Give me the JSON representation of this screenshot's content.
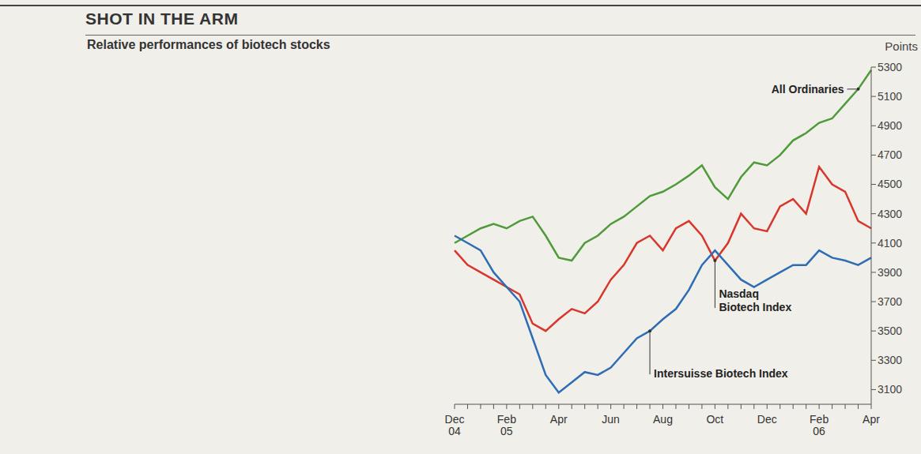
{
  "chart_data": {
    "type": "line",
    "title": "SHOT IN THE ARM",
    "subtitle": "Relative performances of biotech stocks",
    "y_label": "Points",
    "categories": [
      "Dec 04",
      null,
      null,
      null,
      "Feb 05",
      null,
      null,
      null,
      "Apr",
      null,
      null,
      null,
      "Jun",
      null,
      null,
      null,
      "Aug",
      null,
      null,
      null,
      "Oct",
      null,
      null,
      null,
      "Dec",
      null,
      null,
      null,
      "Feb 06",
      null,
      null,
      null,
      "Apr"
    ],
    "series": [
      {
        "name": "All Ordinaries",
        "color": "#4f9a3a",
        "values": [
          4100,
          4150,
          4200,
          4230,
          4200,
          4250,
          4280,
          4150,
          4000,
          3980,
          4100,
          4150,
          4230,
          4280,
          4350,
          4420,
          4450,
          4500,
          4560,
          4630,
          4480,
          4400,
          4550,
          4650,
          4630,
          4700,
          4800,
          4850,
          4920,
          4950,
          5050,
          5150,
          5280
        ]
      },
      {
        "name": "Nasdaq Biotech Index",
        "color": "#d9362b",
        "values": [
          4050,
          3950,
          3900,
          3850,
          3800,
          3750,
          3550,
          3500,
          3580,
          3650,
          3620,
          3700,
          3850,
          3950,
          4100,
          4150,
          4050,
          4200,
          4250,
          4150,
          3980,
          4100,
          4300,
          4200,
          4180,
          4350,
          4400,
          4300,
          4620,
          4500,
          4450,
          4250,
          4200
        ]
      },
      {
        "name": "Intersuisse Biotech Index",
        "color": "#2e6db5",
        "values": [
          4150,
          4100,
          4050,
          3900,
          3800,
          3700,
          3450,
          3200,
          3080,
          3150,
          3220,
          3200,
          3250,
          3350,
          3450,
          3500,
          3580,
          3650,
          3780,
          3950,
          4050,
          3950,
          3850,
          3800,
          3850,
          3900,
          3950,
          3950,
          4050,
          4000,
          3980,
          3950,
          4000
        ]
      }
    ],
    "ylim": [
      3000,
      5300
    ],
    "yticks": [
      3100,
      3300,
      3500,
      3700,
      3900,
      4100,
      4300,
      4500,
      4700,
      4900,
      5100,
      5300
    ],
    "grid": false
  }
}
